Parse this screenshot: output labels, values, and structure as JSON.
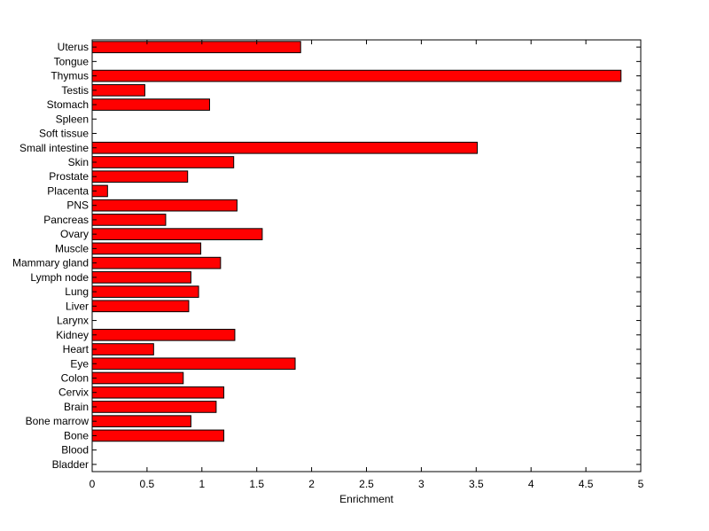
{
  "chart_data": {
    "type": "bar",
    "orientation": "horizontal",
    "xlabel": "Enrichment",
    "ylabel": "",
    "xlim": [
      0,
      5
    ],
    "xticks": [
      0,
      0.5,
      1,
      1.5,
      2,
      2.5,
      3,
      3.5,
      4,
      4.5,
      5
    ],
    "xtick_labels": [
      "0",
      "0.5",
      "1",
      "1.5",
      "2",
      "2.5",
      "3",
      "3.5",
      "4",
      "4.5",
      "5"
    ],
    "grid": false,
    "bar_color": "#ff0000",
    "bar_edge_color": "#000000",
    "categories": [
      "Uterus",
      "Tongue",
      "Thymus",
      "Testis",
      "Stomach",
      "Spleen",
      "Soft tissue",
      "Small intestine",
      "Skin",
      "Prostate",
      "Placenta",
      "PNS",
      "Pancreas",
      "Ovary",
      "Muscle",
      "Mammary gland",
      "Lymph node",
      "Lung",
      "Liver",
      "Larynx",
      "Kidney",
      "Heart",
      "Eye",
      "Colon",
      "Cervix",
      "Brain",
      "Bone marrow",
      "Bone",
      "Blood",
      "Bladder"
    ],
    "values": [
      1.9,
      0,
      4.82,
      0.48,
      1.07,
      0,
      0,
      3.51,
      1.29,
      0.87,
      0.14,
      1.32,
      0.67,
      1.55,
      0.99,
      1.17,
      0.9,
      0.97,
      0.88,
      0,
      1.3,
      0.56,
      1.85,
      0.83,
      1.2,
      1.13,
      0.9,
      1.2,
      0,
      0
    ]
  }
}
